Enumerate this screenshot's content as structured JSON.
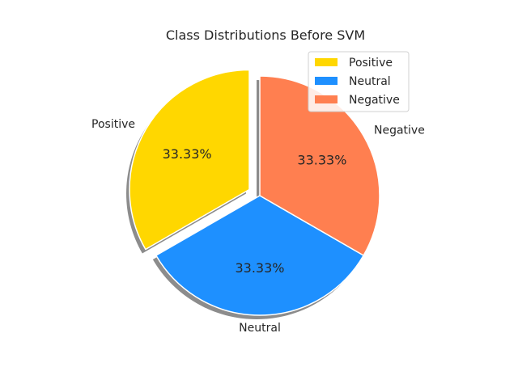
{
  "chart_data": {
    "type": "pie",
    "title": "Class Distributions Before SVM",
    "categories": [
      "Positive",
      "Neutral",
      "Negative"
    ],
    "values": [
      33.33,
      33.33,
      33.33
    ],
    "percent_labels": [
      "33.33%",
      "33.33%",
      "33.33%"
    ],
    "colors": [
      "#FFD700",
      "#1E90FF",
      "#FF7F50"
    ],
    "exploded": [
      true,
      false,
      false
    ],
    "shadow": true,
    "start_angle_deg": 90,
    "legend": {
      "position": "top-right",
      "entries": [
        "Positive",
        "Neutral",
        "Negative"
      ]
    }
  }
}
